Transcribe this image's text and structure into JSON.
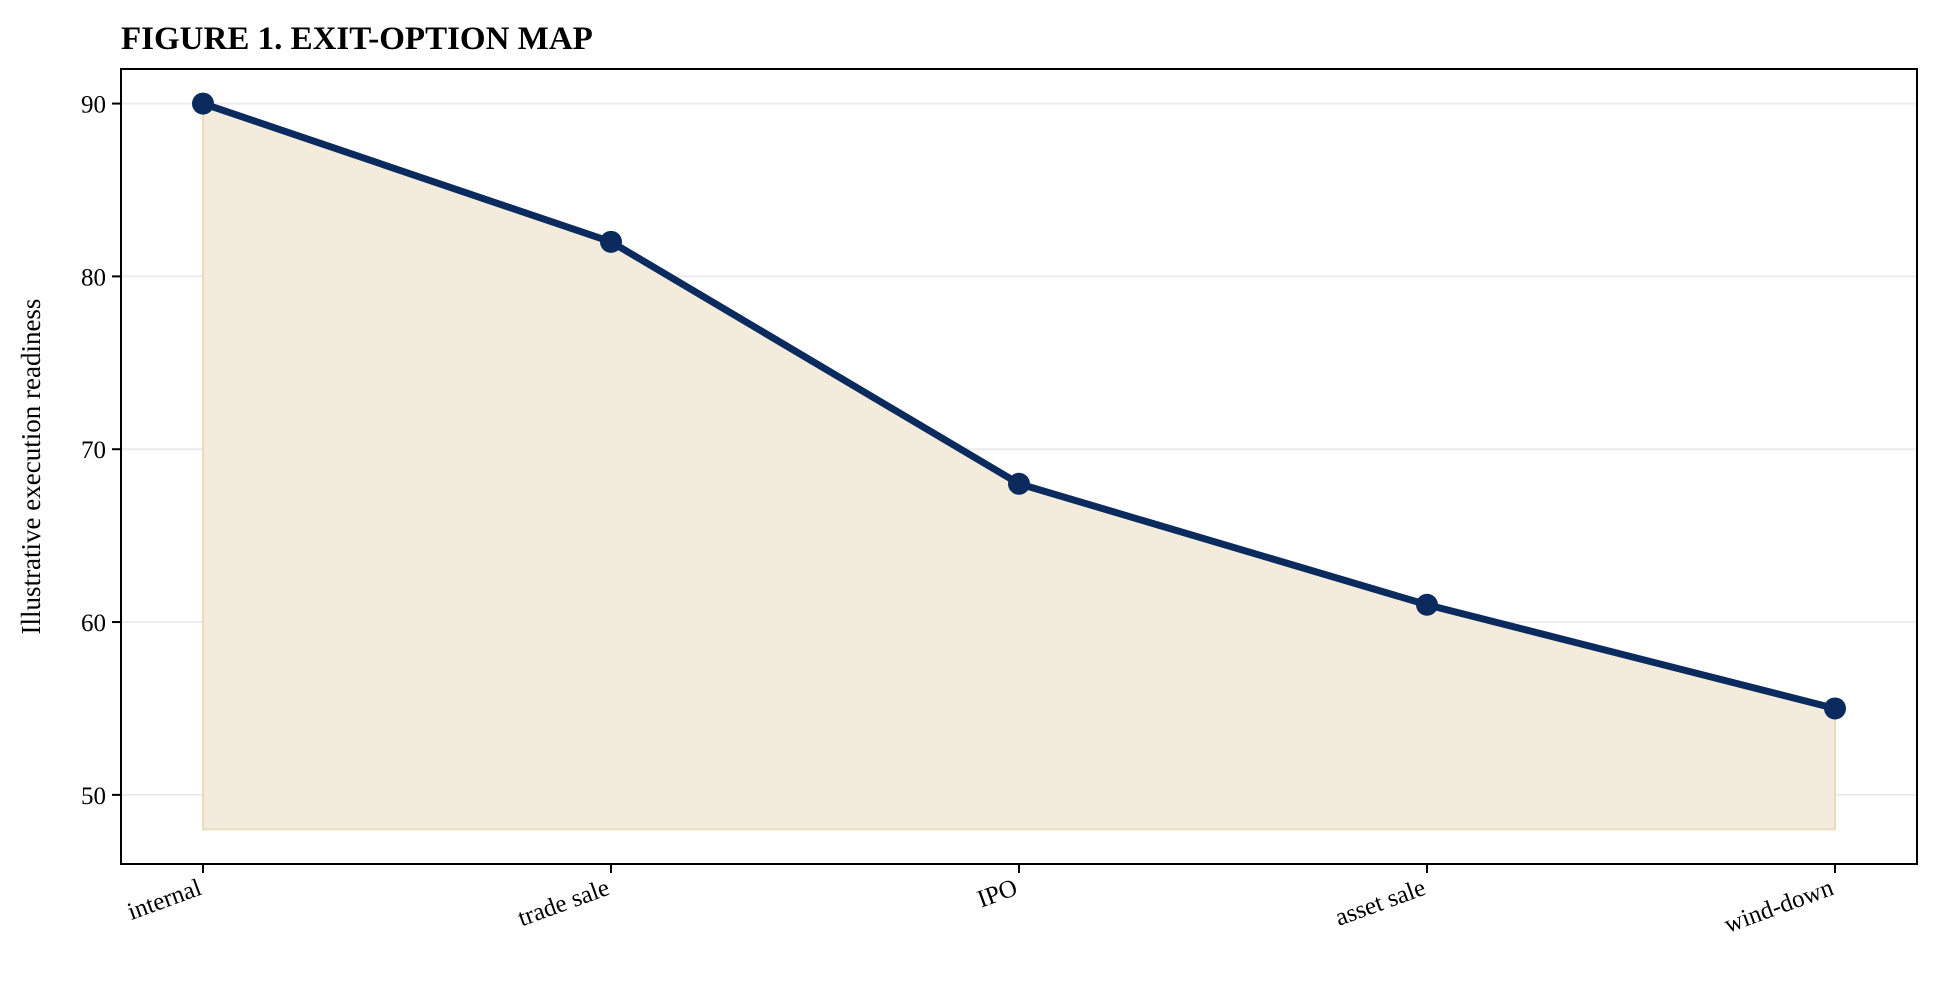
{
  "chart_data": {
    "type": "area",
    "title": "FIGURE 1. EXIT-OPTION MAP",
    "xlabel": "",
    "ylabel": "Illustrative execution readiness",
    "categories": [
      "internal",
      "trade sale",
      "IPO",
      "asset sale",
      "wind-down"
    ],
    "series": [
      {
        "values": [
          90,
          82,
          68,
          61,
          55
        ]
      }
    ],
    "fill_baseline": 48,
    "ylim": [
      46,
      92
    ],
    "yticks": [
      50,
      60,
      70,
      80,
      90
    ],
    "grid": "horizontal",
    "legend": "none",
    "colors": {
      "line": "#0b2a5e",
      "marker": "#0b2a5e",
      "fill": "#f3ecdd",
      "fill_edge": "#e8dcbf",
      "grid": "#ececec",
      "frame": "#000000"
    }
  }
}
